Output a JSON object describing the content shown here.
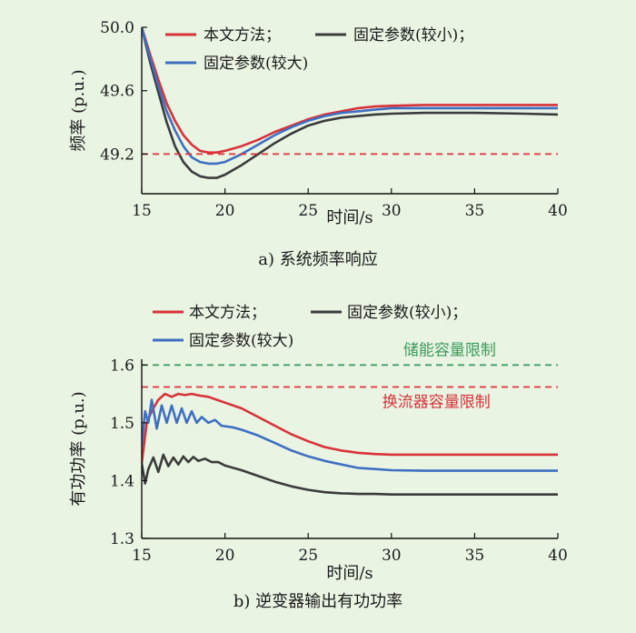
{
  "background_color": "#e9f4e3",
  "chart_data": [
    {
      "type": "line",
      "caption": "a) 系统频率响应",
      "xlabel": "时间/s",
      "ylabel": "频率 (p.u.)",
      "xlim": [
        15,
        40
      ],
      "ylim": [
        48.95,
        50.0
      ],
      "xticks": [
        15,
        20,
        25,
        30,
        35,
        40
      ],
      "yticks": [
        49.2,
        49.6,
        50.0
      ],
      "ytick_labels": [
        "49.2",
        "49.6",
        "50.0"
      ],
      "legend_position": "top-left, inside plot",
      "series": [
        {
          "name": "本文方法；",
          "color": "#d9323a",
          "dash": "solid",
          "x": [
            15,
            15.5,
            16,
            16.5,
            17,
            17.5,
            18,
            18.5,
            19,
            19.5,
            20,
            21,
            22,
            23,
            24,
            25,
            26,
            27,
            28,
            29,
            30,
            32,
            35,
            38,
            40
          ],
          "y": [
            50.0,
            49.83,
            49.67,
            49.52,
            49.41,
            49.32,
            49.26,
            49.22,
            49.21,
            49.21,
            49.22,
            49.25,
            49.29,
            49.34,
            49.38,
            49.42,
            49.45,
            49.47,
            49.49,
            49.5,
            49.505,
            49.51,
            49.51,
            49.51,
            49.51
          ]
        },
        {
          "name": "固定参数(较小)；",
          "color": "#3b3b3b",
          "dash": "solid",
          "x": [
            15,
            15.5,
            16,
            16.5,
            17,
            17.5,
            18,
            18.5,
            19,
            19.5,
            20,
            21,
            22,
            23,
            24,
            25,
            26,
            27,
            28,
            29,
            30,
            32,
            35,
            38,
            40
          ],
          "y": [
            50.0,
            49.78,
            49.59,
            49.4,
            49.25,
            49.15,
            49.09,
            49.06,
            49.05,
            49.05,
            49.07,
            49.13,
            49.2,
            49.27,
            49.33,
            49.38,
            49.41,
            49.43,
            49.44,
            49.45,
            49.455,
            49.46,
            49.46,
            49.455,
            49.45
          ]
        },
        {
          "name": "固定参数(较大)",
          "color": "#3f6fc2",
          "dash": "solid",
          "x": [
            15,
            15.5,
            16,
            16.5,
            17,
            17.5,
            18,
            18.5,
            19,
            19.5,
            20,
            21,
            22,
            23,
            24,
            25,
            26,
            27,
            28,
            29,
            30,
            32,
            35,
            38,
            40
          ],
          "y": [
            50.0,
            49.81,
            49.63,
            49.47,
            49.35,
            49.25,
            49.18,
            49.15,
            49.14,
            49.14,
            49.15,
            49.2,
            49.26,
            49.32,
            49.37,
            49.41,
            49.44,
            49.46,
            49.47,
            49.48,
            49.49,
            49.49,
            49.49,
            49.49,
            49.49
          ]
        },
        {
          "name": "",
          "color": "#e0323a",
          "dash": "dashed",
          "x": [
            15,
            40
          ],
          "y": [
            49.2,
            49.2
          ]
        }
      ]
    },
    {
      "type": "line",
      "caption": "b) 逆变器输出有功功率",
      "xlabel": "时间/s",
      "ylabel": "有功功率 (p.u.)",
      "xlim": [
        15,
        40
      ],
      "ylim": [
        1.3,
        1.61
      ],
      "xticks": [
        15,
        20,
        25,
        30,
        35,
        40
      ],
      "yticks": [
        1.3,
        1.4,
        1.5,
        1.6
      ],
      "ytick_labels": [
        "1.3",
        "1.4",
        "1.5",
        "1.6"
      ],
      "legend_position": "top-left, above plot",
      "annotations": [
        {
          "text": "储能容量限制",
          "color": "#3a9a5a",
          "x": 33.5,
          "y": 1.617
        },
        {
          "text": "换流器容量限制",
          "color": "#d9323a",
          "x": 32.7,
          "y": 1.527
        }
      ],
      "series": [
        {
          "name": "本文方法；",
          "color": "#d9323a",
          "dash": "solid",
          "x": [
            15,
            15.3,
            15.6,
            16,
            16.4,
            16.8,
            17.2,
            17.6,
            18,
            18.5,
            19,
            19.5,
            20,
            21,
            22,
            23,
            24,
            25,
            26,
            27,
            28,
            29,
            30,
            32,
            35,
            38,
            40
          ],
          "y": [
            1.43,
            1.5,
            1.52,
            1.54,
            1.55,
            1.545,
            1.55,
            1.548,
            1.55,
            1.547,
            1.545,
            1.54,
            1.535,
            1.525,
            1.51,
            1.495,
            1.48,
            1.468,
            1.458,
            1.452,
            1.448,
            1.446,
            1.445,
            1.445,
            1.445,
            1.445,
            1.445
          ]
        },
        {
          "name": "固定参数(较小)；",
          "color": "#3b3b3b",
          "dash": "solid",
          "x": [
            15,
            15.2,
            15.4,
            15.7,
            16,
            16.3,
            16.6,
            16.9,
            17.2,
            17.5,
            17.8,
            18.1,
            18.4,
            18.8,
            19.2,
            19.6,
            20,
            21,
            22,
            23,
            24,
            25,
            26,
            27,
            28,
            29,
            30,
            32,
            35,
            38,
            40
          ],
          "y": [
            1.43,
            1.395,
            1.42,
            1.44,
            1.415,
            1.445,
            1.425,
            1.44,
            1.428,
            1.442,
            1.432,
            1.441,
            1.434,
            1.438,
            1.432,
            1.432,
            1.426,
            1.418,
            1.408,
            1.398,
            1.39,
            1.384,
            1.38,
            1.378,
            1.377,
            1.377,
            1.376,
            1.376,
            1.376,
            1.376,
            1.376
          ]
        },
        {
          "name": "固定参数(较大)",
          "color": "#3f6fc2",
          "dash": "solid",
          "x": [
            15,
            15.2,
            15.4,
            15.6,
            15.9,
            16.2,
            16.5,
            16.8,
            17.1,
            17.4,
            17.7,
            18,
            18.3,
            18.6,
            19,
            19.4,
            19.8,
            20.5,
            21,
            22,
            23,
            24,
            25,
            26,
            27,
            28,
            29,
            30,
            32,
            35,
            38,
            40
          ],
          "y": [
            1.46,
            1.52,
            1.5,
            1.54,
            1.49,
            1.53,
            1.5,
            1.53,
            1.5,
            1.525,
            1.5,
            1.52,
            1.5,
            1.51,
            1.5,
            1.505,
            1.495,
            1.492,
            1.488,
            1.478,
            1.465,
            1.452,
            1.442,
            1.434,
            1.428,
            1.422,
            1.42,
            1.418,
            1.417,
            1.417,
            1.417,
            1.417
          ]
        },
        {
          "name": "",
          "color": "#3a9a5a",
          "dash": "dashed",
          "x": [
            15,
            40
          ],
          "y": [
            1.6,
            1.6
          ]
        },
        {
          "name": "",
          "color": "#e0323a",
          "dash": "dashed",
          "x": [
            15,
            40
          ],
          "y": [
            1.562,
            1.562
          ]
        }
      ]
    }
  ]
}
